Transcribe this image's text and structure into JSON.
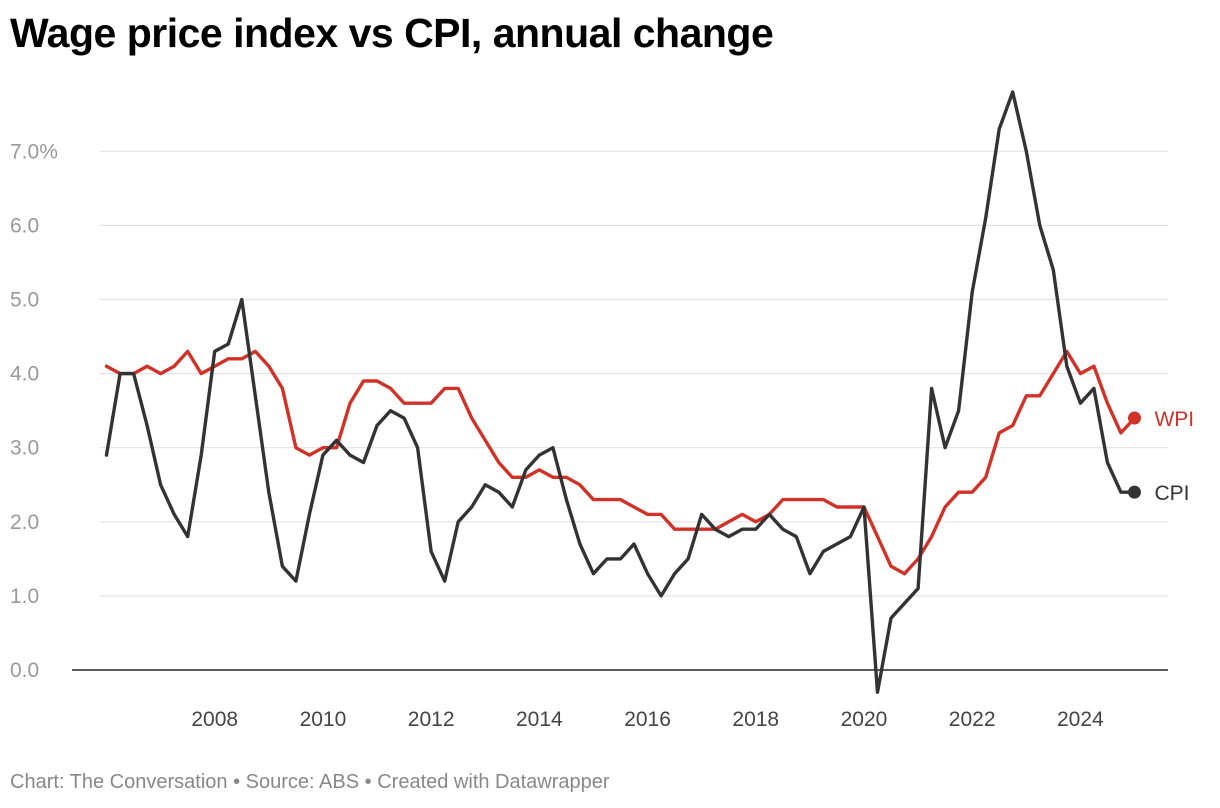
{
  "title": "Wage price index vs CPI, annual change",
  "footer": {
    "credit": "Chart: The Conversation",
    "separator": "•",
    "source": "Source: ABS",
    "made_with": "Created with Datawrapper"
  },
  "chart_data": {
    "type": "line",
    "title": "Wage price index vs CPI, annual change",
    "xlabel": "",
    "ylabel": "",
    "x_range": [
      2005.75,
      2025.25
    ],
    "ylim": [
      -0.3,
      7.8
    ],
    "yticks": [
      {
        "value": 0,
        "label": "0.0"
      },
      {
        "value": 1,
        "label": "1.0"
      },
      {
        "value": 2,
        "label": "2.0"
      },
      {
        "value": 3,
        "label": "3.0"
      },
      {
        "value": 4,
        "label": "4.0"
      },
      {
        "value": 5,
        "label": "5.0"
      },
      {
        "value": 6,
        "label": "6.0"
      },
      {
        "value": 7,
        "label": "7.0%"
      }
    ],
    "xticks": [
      2008,
      2010,
      2012,
      2014,
      2016,
      2018,
      2020,
      2022,
      2024
    ],
    "grid": true,
    "legend": "direct labels at line ends",
    "series": [
      {
        "name": "WPI",
        "color": "#d03228",
        "start": "2006-Q1",
        "values": [
          4.1,
          4.0,
          4.0,
          4.1,
          4.0,
          4.1,
          4.3,
          4.0,
          4.1,
          4.2,
          4.2,
          4.3,
          4.1,
          3.8,
          3.0,
          2.9,
          3.0,
          3.0,
          3.6,
          3.9,
          3.9,
          3.8,
          3.6,
          3.6,
          3.6,
          3.8,
          3.8,
          3.4,
          3.1,
          2.8,
          2.6,
          2.6,
          2.7,
          2.6,
          2.6,
          2.5,
          2.3,
          2.3,
          2.3,
          2.2,
          2.1,
          2.1,
          1.9,
          1.9,
          1.9,
          1.9,
          2.0,
          2.1,
          2.0,
          2.1,
          2.3,
          2.3,
          2.3,
          2.3,
          2.2,
          2.2,
          2.2,
          1.8,
          1.4,
          1.3,
          1.5,
          1.8,
          2.2,
          2.4,
          2.4,
          2.6,
          3.2,
          3.3,
          3.7,
          3.7,
          4.0,
          4.3,
          4.0,
          4.1,
          3.6,
          3.2,
          3.4
        ]
      },
      {
        "name": "CPI",
        "color": "#333333",
        "start": "2006-Q1",
        "values": [
          2.9,
          4.0,
          4.0,
          3.3,
          2.5,
          2.1,
          1.8,
          2.9,
          4.3,
          4.4,
          5.0,
          3.7,
          2.4,
          1.4,
          1.2,
          2.1,
          2.9,
          3.1,
          2.9,
          2.8,
          3.3,
          3.5,
          3.4,
          3.0,
          1.6,
          1.2,
          2.0,
          2.2,
          2.5,
          2.4,
          2.2,
          2.7,
          2.9,
          3.0,
          2.3,
          1.7,
          1.3,
          1.5,
          1.5,
          1.7,
          1.3,
          1.0,
          1.3,
          1.5,
          2.1,
          1.9,
          1.8,
          1.9,
          1.9,
          2.1,
          1.9,
          1.8,
          1.3,
          1.6,
          1.7,
          1.8,
          2.2,
          -0.3,
          0.7,
          0.9,
          1.1,
          3.8,
          3.0,
          3.5,
          5.1,
          6.1,
          7.3,
          7.8,
          7.0,
          6.0,
          5.4,
          4.1,
          3.6,
          3.8,
          2.8,
          2.4,
          2.4
        ]
      }
    ]
  }
}
